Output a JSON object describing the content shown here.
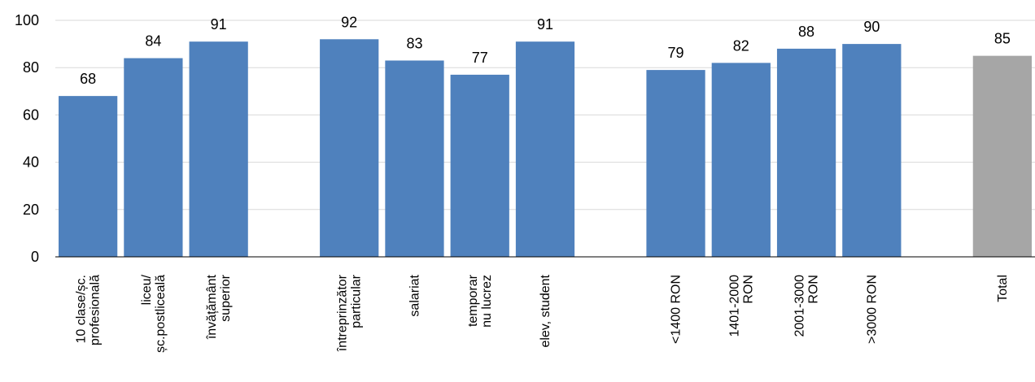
{
  "chart_data": {
    "type": "bar",
    "ylim": [
      0,
      100
    ],
    "yticks": [
      0,
      20,
      40,
      60,
      80,
      100
    ],
    "grid": true,
    "colors": {
      "primary": "#4f81bd",
      "total": "#a6a6a6",
      "grid": "#d9d9d9",
      "axis": "#000000"
    },
    "categories": [
      {
        "label": [
          "10 clase/șc.",
          "profesională"
        ],
        "value": 68,
        "color": "primary"
      },
      {
        "label": [
          "liceu/",
          "șc.postliceală"
        ],
        "value": 84,
        "color": "primary"
      },
      {
        "label": [
          "învățământ",
          "superior"
        ],
        "value": 91,
        "color": "primary"
      },
      {
        "label": null
      },
      {
        "label": [
          "întreprinzător",
          "particular"
        ],
        "value": 92,
        "color": "primary"
      },
      {
        "label": [
          "salariat"
        ],
        "value": 83,
        "color": "primary"
      },
      {
        "label": [
          "temporar",
          "nu lucrez"
        ],
        "value": 77,
        "color": "primary"
      },
      {
        "label": [
          "elev, student"
        ],
        "value": 91,
        "color": "primary"
      },
      {
        "label": null
      },
      {
        "label": [
          "<1400 RON"
        ],
        "value": 79,
        "color": "primary"
      },
      {
        "label": [
          "1401-2000",
          "RON"
        ],
        "value": 82,
        "color": "primary"
      },
      {
        "label": [
          "2001-3000",
          "RON"
        ],
        "value": 88,
        "color": "primary"
      },
      {
        "label": [
          ">3000 RON"
        ],
        "value": 90,
        "color": "primary"
      },
      {
        "label": null
      },
      {
        "label": [
          "Total"
        ],
        "value": 85,
        "color": "total"
      }
    ]
  }
}
